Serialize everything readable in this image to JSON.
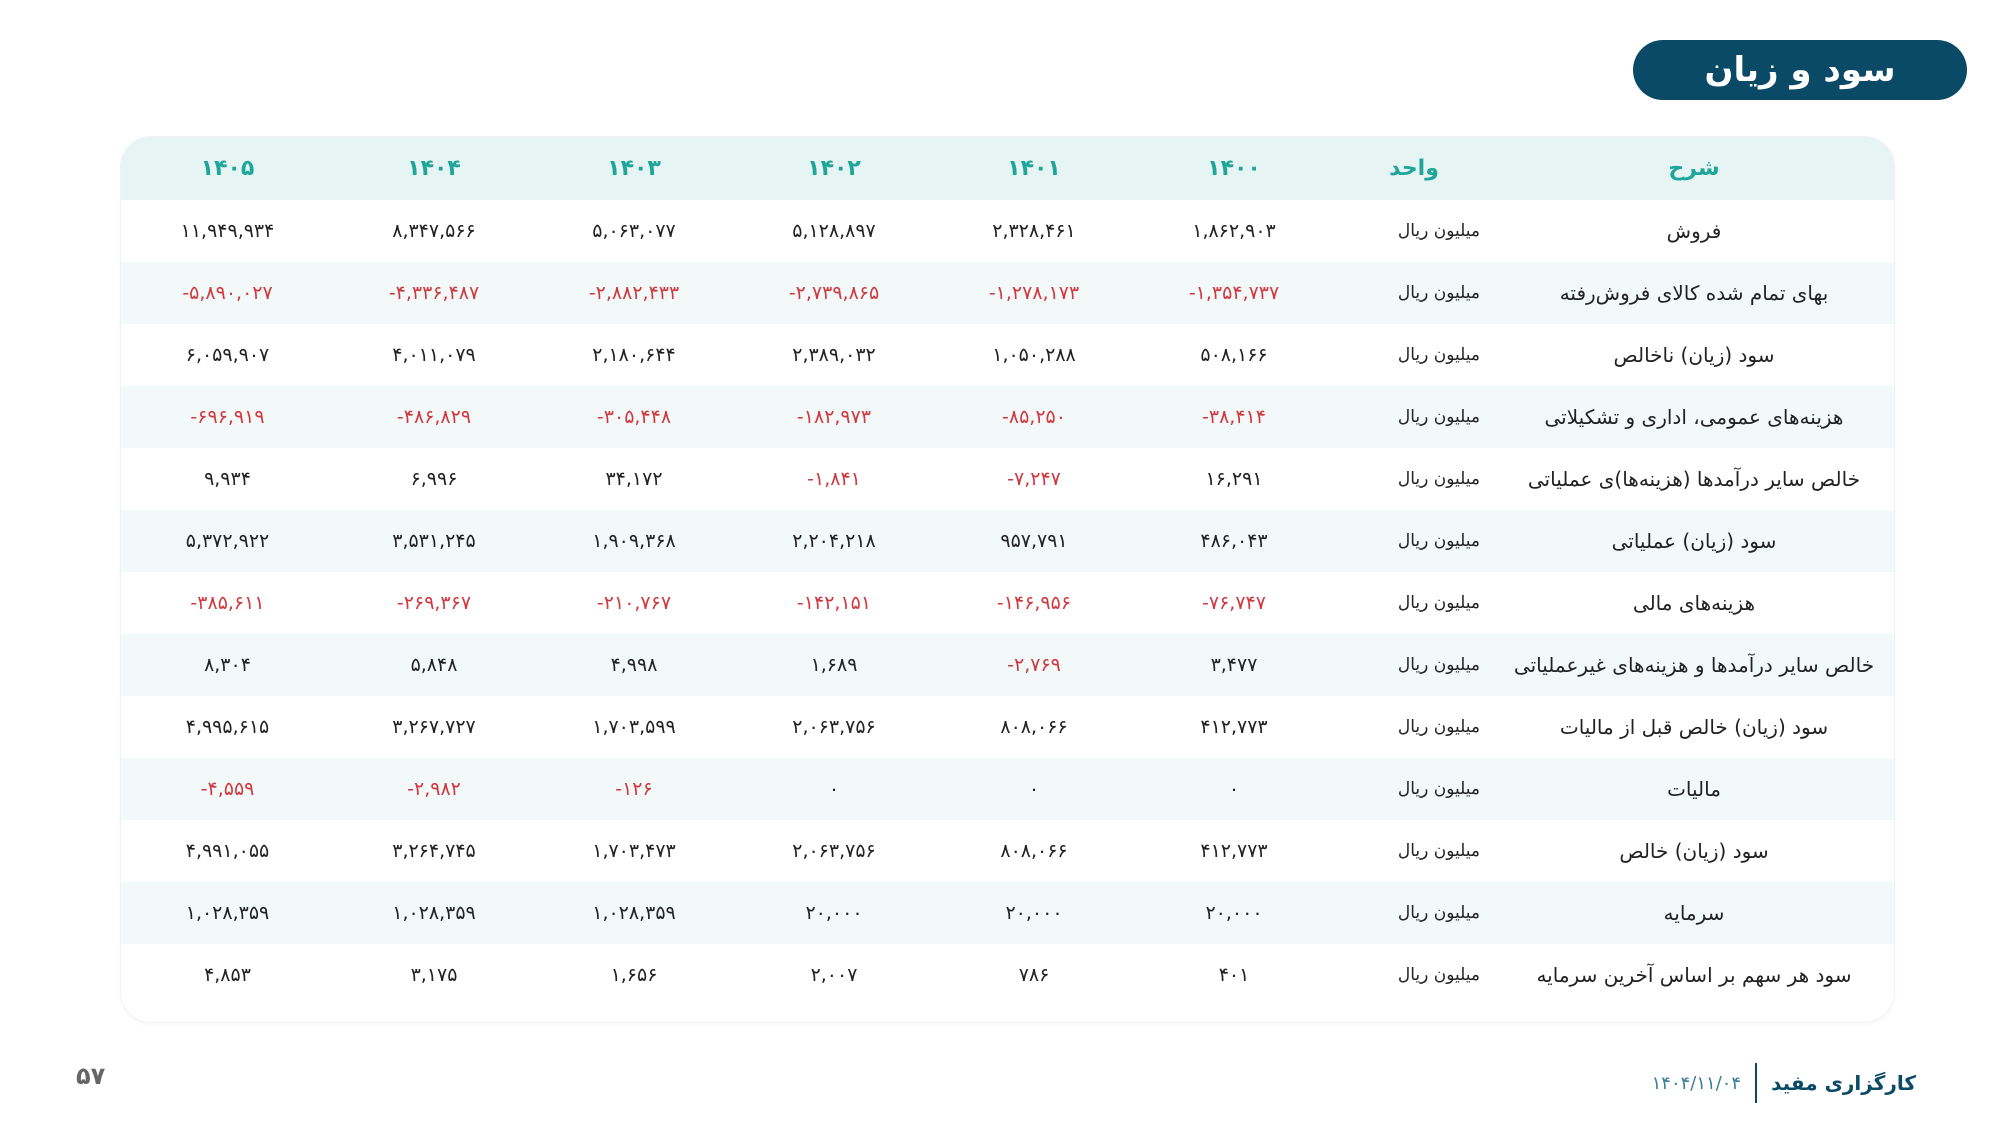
{
  "title": "سود و زیان",
  "table": {
    "headers": [
      "شرح",
      "واحد",
      "۱۴۰۰",
      "۱۴۰۱",
      "۱۴۰۲",
      "۱۴۰۳",
      "۱۴۰۴",
      "۱۴۰۵"
    ],
    "rows": [
      {
        "desc": "فروش",
        "unit": "میلیون ریال",
        "values": [
          "۱,۸۶۲,۹۰۳",
          "۲,۳۲۸,۴۶۱",
          "۵,۱۲۸,۸۹۷",
          "۵,۰۶۳,۰۷۷",
          "۸,۳۴۷,۵۶۶",
          "۱۱,۹۴۹,۹۳۴"
        ]
      },
      {
        "desc": "بهای تمام شده کالای فروش‌رفته",
        "unit": "میلیون ریال",
        "values": [
          "-۱,۳۵۴,۷۳۷",
          "-۱,۲۷۸,۱۷۳",
          "-۲,۷۳۹,۸۶۵",
          "-۲,۸۸۲,۴۳۳",
          "-۴,۳۳۶,۴۸۷",
          "-۵,۸۹۰,۰۲۷"
        ]
      },
      {
        "desc": "سود (زیان) ناخالص",
        "unit": "میلیون ریال",
        "values": [
          "۵۰۸,۱۶۶",
          "۱,۰۵۰,۲۸۸",
          "۲,۳۸۹,۰۳۲",
          "۲,۱۸۰,۶۴۴",
          "۴,۰۱۱,۰۷۹",
          "۶,۰۵۹,۹۰۷"
        ]
      },
      {
        "desc": "هزینه‌های عمومی، اداری و تشکیلاتی",
        "unit": "میلیون ریال",
        "values": [
          "-۳۸,۴۱۴",
          "-۸۵,۲۵۰",
          "-۱۸۲,۹۷۳",
          "-۳۰۵,۴۴۸",
          "-۴۸۶,۸۲۹",
          "-۶۹۶,۹۱۹"
        ]
      },
      {
        "desc": "خالص سایر درآمدها (هزینه‌ها)ی عملیاتی",
        "unit": "میلیون ریال",
        "values": [
          "۱۶,۲۹۱",
          "-۷,۲۴۷",
          "-۱,۸۴۱",
          "۳۴,۱۷۲",
          "۶,۹۹۶",
          "۹,۹۳۴"
        ]
      },
      {
        "desc": "سود (زیان) عملیاتی",
        "unit": "میلیون ریال",
        "values": [
          "۴۸۶,۰۴۳",
          "۹۵۷,۷۹۱",
          "۲,۲۰۴,۲۱۸",
          "۱,۹۰۹,۳۶۸",
          "۳,۵۳۱,۲۴۵",
          "۵,۳۷۲,۹۲۲"
        ]
      },
      {
        "desc": "هزینه‌های مالی",
        "unit": "میلیون ریال",
        "values": [
          "-۷۶,۷۴۷",
          "-۱۴۶,۹۵۶",
          "-۱۴۲,۱۵۱",
          "-۲۱۰,۷۶۷",
          "-۲۶۹,۳۶۷",
          "-۳۸۵,۶۱۱"
        ]
      },
      {
        "desc": "خالص سایر درآمدها و هزینه‌های غیرعملیاتی",
        "unit": "میلیون ریال",
        "values": [
          "۳,۴۷۷",
          "-۲,۷۶۹",
          "۱,۶۸۹",
          "۴,۹۹۸",
          "۵,۸۴۸",
          "۸,۳۰۴"
        ]
      },
      {
        "desc": "سود (زیان) خالص قبل از مالیات",
        "unit": "میلیون ریال",
        "values": [
          "۴۱۲,۷۷۳",
          "۸۰۸,۰۶۶",
          "۲,۰۶۳,۷۵۶",
          "۱,۷۰۳,۵۹۹",
          "۳,۲۶۷,۷۲۷",
          "۴,۹۹۵,۶۱۵"
        ]
      },
      {
        "desc": "مالیات",
        "unit": "میلیون ریال",
        "values": [
          "۰",
          "۰",
          "۰",
          "-۱۲۶",
          "-۲,۹۸۲",
          "-۴,۵۵۹"
        ]
      },
      {
        "desc": "سود (زیان) خالص",
        "unit": "میلیون ریال",
        "values": [
          "۴۱۲,۷۷۳",
          "۸۰۸,۰۶۶",
          "۲,۰۶۳,۷۵۶",
          "۱,۷۰۳,۴۷۳",
          "۳,۲۶۴,۷۴۵",
          "۴,۹۹۱,۰۵۵"
        ]
      },
      {
        "desc": "سرمایه",
        "unit": "میلیون ریال",
        "values": [
          "۲۰,۰۰۰",
          "۲۰,۰۰۰",
          "۲۰,۰۰۰",
          "۱,۰۲۸,۳۵۹",
          "۱,۰۲۸,۳۵۹",
          "۱,۰۲۸,۳۵۹"
        ]
      },
      {
        "desc": "سود هر سهم بر اساس آخرین سرمایه",
        "unit": "میلیون ریال",
        "values": [
          "۴۰۱",
          "۷۸۶",
          "۲,۰۰۷",
          "۱,۶۵۶",
          "۳,۱۷۵",
          "۴,۸۵۳"
        ]
      }
    ]
  },
  "footer": {
    "brand": "کارگزاری مفید",
    "date": "۱۴۰۴/۱۱/۰۴",
    "page_number": "۵۷"
  },
  "colors": {
    "title_bg": "#0a4a66",
    "header_text": "#1fa69a",
    "header_bg": "#e6f5f3",
    "stripe_bg": "#f2f9f8",
    "negative": "#d0383e"
  }
}
